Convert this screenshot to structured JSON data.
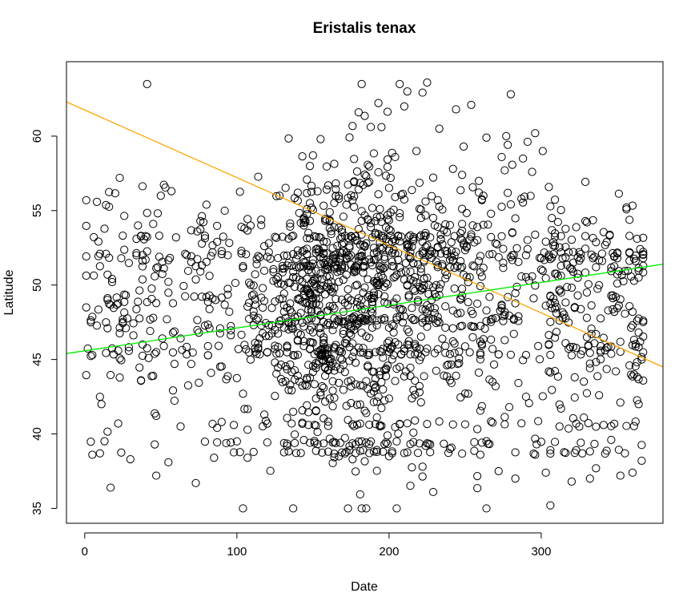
{
  "chart_data": {
    "type": "scatter",
    "title": "Eristalis tenax",
    "xlabel": "Date",
    "ylabel": "Latitude",
    "xlim": [
      -12,
      380
    ],
    "ylim": [
      34,
      65
    ],
    "xticks": [
      0,
      100,
      200,
      300
    ],
    "yticks": [
      35,
      40,
      45,
      50,
      55,
      60
    ],
    "grid": false,
    "marker": "open-circle",
    "lines": [
      {
        "color": "#ffa500",
        "points": [
          [
            -12,
            62.3
          ],
          [
            380,
            44.5
          ]
        ]
      },
      {
        "color": "#00ee00",
        "points": [
          [
            -12,
            45.4
          ],
          [
            380,
            51.4
          ]
        ]
      }
    ],
    "points_anchor": [
      [
        1,
        55.7
      ],
      [
        4,
        47.5
      ],
      [
        5,
        38.6
      ],
      [
        5,
        45.3
      ],
      [
        10,
        52.1
      ],
      [
        10,
        38.7
      ],
      [
        11,
        42
      ],
      [
        14,
        52.1
      ],
      [
        15,
        49
      ],
      [
        22,
        40.7
      ],
      [
        22,
        45.6
      ],
      [
        23,
        57.2
      ],
      [
        25,
        47.7
      ],
      [
        30,
        38.3
      ],
      [
        34,
        52
      ],
      [
        35,
        54
      ],
      [
        37,
        43.6
      ],
      [
        40,
        51.7
      ],
      [
        42,
        45.1
      ],
      [
        47,
        37.2
      ],
      [
        48,
        51.2
      ],
      [
        50,
        56
      ],
      [
        52,
        45.9
      ],
      [
        55,
        38.1
      ],
      [
        57,
        56.3
      ],
      [
        58,
        46.8
      ],
      [
        60,
        53.2
      ],
      [
        63,
        40.5
      ],
      [
        66,
        52.1
      ],
      [
        70,
        44.7
      ],
      [
        73,
        36.7
      ],
      [
        74,
        53.6
      ],
      [
        76,
        54.3
      ],
      [
        80,
        55.4
      ],
      [
        82,
        47.1
      ],
      [
        85,
        38.4
      ],
      [
        90,
        40.8
      ],
      [
        94,
        52
      ],
      [
        98,
        40.6
      ],
      [
        100,
        39.5
      ],
      [
        104,
        35
      ],
      [
        104,
        42.7
      ],
      [
        107,
        38.4
      ],
      [
        110,
        49.3
      ],
      [
        113,
        51.4
      ],
      [
        118,
        41.3
      ],
      [
        120,
        45.5
      ],
      [
        128,
        56
      ],
      [
        130,
        51.1
      ],
      [
        133,
        39.2
      ],
      [
        137,
        35
      ],
      [
        140,
        56.2
      ],
      [
        144,
        54
      ],
      [
        148,
        45.7
      ],
      [
        152,
        49.1
      ],
      [
        155,
        59.8
      ],
      [
        157,
        43.1
      ],
      [
        160,
        56.7
      ],
      [
        164,
        51.8
      ],
      [
        168,
        39.4
      ],
      [
        170,
        48.2
      ],
      [
        172,
        38.8
      ],
      [
        176,
        55.7
      ],
      [
        178,
        53
      ],
      [
        180,
        61.6
      ],
      [
        182,
        46.8
      ],
      [
        186,
        49.2
      ],
      [
        188,
        39.5
      ],
      [
        190,
        51.7
      ],
      [
        193,
        56.1
      ],
      [
        196,
        52.5
      ],
      [
        199,
        45.8
      ],
      [
        202,
        38.7
      ],
      [
        204,
        58.6
      ],
      [
        207,
        44.5
      ],
      [
        210,
        62
      ],
      [
        212,
        63
      ],
      [
        214,
        51.9
      ],
      [
        216,
        49.7
      ],
      [
        218,
        59
      ],
      [
        220,
        42.8
      ],
      [
        222,
        37.8
      ],
      [
        225,
        63.6
      ],
      [
        227,
        53.2
      ],
      [
        230,
        48.1
      ],
      [
        232,
        55.7
      ],
      [
        233,
        60.5
      ],
      [
        235,
        46.4
      ],
      [
        237,
        52.3
      ],
      [
        240,
        39
      ],
      [
        242,
        57.8
      ],
      [
        244,
        61.8
      ],
      [
        245,
        44.7
      ],
      [
        247,
        51.6
      ],
      [
        249,
        59.3
      ],
      [
        252,
        42.7
      ],
      [
        254,
        62.1
      ],
      [
        256,
        47.2
      ],
      [
        258,
        53.9
      ],
      [
        260,
        38.6
      ],
      [
        262,
        56
      ],
      [
        264,
        59.9
      ],
      [
        266,
        49.2
      ],
      [
        268,
        43.5
      ],
      [
        270,
        52.8
      ],
      [
        272,
        37.5
      ],
      [
        274,
        58.6
      ],
      [
        276,
        46.3
      ],
      [
        277,
        60
      ],
      [
        279,
        41.8
      ],
      [
        281,
        53.5
      ],
      [
        283,
        37
      ],
      [
        285,
        47.9
      ],
      [
        287,
        55.8
      ],
      [
        290,
        42.5
      ],
      [
        292,
        50.3
      ],
      [
        294,
        57.6
      ],
      [
        296,
        38.6
      ],
      [
        298,
        45.9
      ],
      [
        300,
        51.8
      ],
      [
        301,
        59
      ],
      [
        303,
        37.4
      ],
      [
        305,
        44.2
      ],
      [
        306,
        35.2
      ],
      [
        307,
        54.5
      ],
      [
        309,
        48.8
      ],
      [
        312,
        40.5
      ],
      [
        314,
        51.8
      ],
      [
        316,
        46.1
      ],
      [
        318,
        52.2
      ],
      [
        320,
        36.8
      ],
      [
        322,
        43.8
      ],
      [
        324,
        49.3
      ],
      [
        326,
        51.8
      ],
      [
        328,
        41.1
      ],
      [
        330,
        47.8
      ],
      [
        332,
        37
      ],
      [
        334,
        51.8
      ],
      [
        336,
        46.7
      ],
      [
        338,
        42.6
      ],
      [
        341,
        40.6
      ],
      [
        343,
        45.8
      ],
      [
        346,
        39.6
      ],
      [
        348,
        48.2
      ],
      [
        350,
        51.8
      ],
      [
        352,
        37.2
      ],
      [
        355,
        38.7
      ],
      [
        358,
        44.6
      ],
      [
        360,
        37.4
      ],
      [
        363,
        47.6
      ],
      [
        364,
        42
      ],
      [
        365,
        46.2
      ],
      [
        366,
        38.2
      ],
      [
        366,
        45
      ],
      [
        367,
        51.8
      ]
    ],
    "points_generated_n": 1750,
    "points_generated_seed": 20240611
  }
}
